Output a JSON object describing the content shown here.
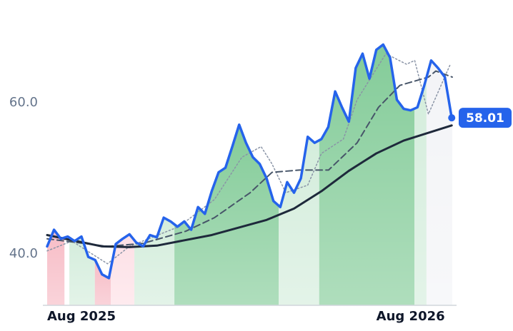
{
  "chart_data": {
    "type": "line",
    "x": [
      0,
      0.25,
      0.5,
      0.75,
      1,
      1.25,
      1.5,
      1.75,
      2,
      2.25,
      2.5,
      2.75,
      3,
      3.25,
      3.5,
      3.75,
      4,
      4.25,
      4.5,
      4.75,
      5,
      5.25,
      5.5,
      5.75,
      6,
      6.25,
      6.5,
      6.75,
      7,
      7.25,
      7.5,
      7.75,
      8,
      8.25,
      8.5,
      8.75,
      9,
      9.25,
      9.5,
      9.75,
      10,
      10.25,
      10.5,
      10.75,
      11,
      11.25,
      11.5,
      11.75,
      12,
      12.25,
      12.5,
      12.75,
      13,
      13.25,
      13.5,
      13.75,
      14,
      14.25,
      14.5,
      14.75
    ],
    "xlim": [
      0,
      14.77
    ],
    "xticks": [
      {
        "value": 0,
        "label": "Aug 2025"
      },
      {
        "value": 12,
        "label": "Aug 2026"
      }
    ],
    "ylim": [
      33.2,
      73.6
    ],
    "yticks": [
      {
        "value": 40,
        "label": "40.0"
      },
      {
        "value": 60,
        "label": "60.0"
      }
    ],
    "series": [
      {
        "color": "#2563eb",
        "style": "solid",
        "width": 3.5,
        "values": [
          41.0,
          43.2,
          42.0,
          42.3,
          41.7,
          42.3,
          39.6,
          39.2,
          37.3,
          36.8,
          41.3,
          42.0,
          42.6,
          41.5,
          41.0,
          42.5,
          42.2,
          44.8,
          44.3,
          43.6,
          44.3,
          43.2,
          46.2,
          45.3,
          48.3,
          50.8,
          51.4,
          54.2,
          57.1,
          54.7,
          52.8,
          51.9,
          50.0,
          47.0,
          46.2,
          49.5,
          48.1,
          50.0,
          55.5,
          54.7,
          55.2,
          56.8,
          61.5,
          59.4,
          57.5,
          64.6,
          66.5,
          63.2,
          67.0,
          67.7,
          66.0,
          60.4,
          59.2,
          59.0,
          59.4,
          62.3,
          65.6,
          64.6,
          63.4,
          58.01
        ]
      },
      {
        "color": "#1e293b",
        "style": "solid",
        "width": 3,
        "x": [
          0,
          2,
          3,
          4,
          6,
          8,
          9,
          10,
          11,
          12,
          13,
          14.75
        ],
        "values": [
          42.5,
          41.0,
          40.9,
          41.1,
          42.5,
          44.5,
          46.0,
          48.3,
          51.0,
          53.3,
          55.0,
          57.0
        ]
      },
      {
        "color": "#475569",
        "style": "dashed",
        "width": 2,
        "x": [
          0,
          2.2,
          3.5,
          5.05,
          6.1,
          7.4,
          8.2,
          9.2,
          10.26,
          11.3,
          12.08,
          12.86,
          13.9,
          14.17,
          14.77
        ],
        "values": [
          42.0,
          41.0,
          41.4,
          43.0,
          44.8,
          48.1,
          50.8,
          51.1,
          51.1,
          54.7,
          59.4,
          62.3,
          63.4,
          64.2,
          63.4
        ]
      },
      {
        "color": "#8a94a6",
        "style": "dotted",
        "width": 1.5,
        "x": [
          0,
          0.9,
          2.2,
          3.0,
          4.8,
          6.1,
          7.1,
          7.8,
          8.2,
          8.7,
          9.5,
          10.0,
          10.8,
          11.3,
          12.35,
          13.1,
          13.4,
          13.9,
          14.7
        ],
        "values": [
          40.4,
          41.7,
          38.7,
          41.0,
          43.6,
          47.2,
          52.8,
          54.2,
          51.9,
          48.1,
          49.1,
          53.3,
          55.2,
          60.4,
          66.5,
          65.1,
          65.6,
          58.5,
          65.1
        ]
      }
    ],
    "bands": [
      {
        "x0": 0,
        "x1": 0.63,
        "color": "#f7bcc6"
      },
      {
        "x0": 0.81,
        "x1": 1.74,
        "color": "#d4eddc"
      },
      {
        "x0": 1.74,
        "x1": 2.32,
        "color": "#f7bcc6"
      },
      {
        "x0": 2.32,
        "x1": 3.18,
        "color": "#fde0e6"
      },
      {
        "x0": 3.18,
        "x1": 4.64,
        "color": "#d4eddc"
      },
      {
        "x0": 4.64,
        "x1": 8.44,
        "color": "#84cc99"
      },
      {
        "x0": 8.44,
        "x1": 9.92,
        "color": "#d4eddc"
      },
      {
        "x0": 9.92,
        "x1": 13.39,
        "color": "#84cc99"
      },
      {
        "x0": 13.39,
        "x1": 13.83,
        "color": "#d4eddc"
      },
      {
        "x0": 13.83,
        "x1": 14.77,
        "color": "#f3f4f7"
      }
    ]
  }
}
